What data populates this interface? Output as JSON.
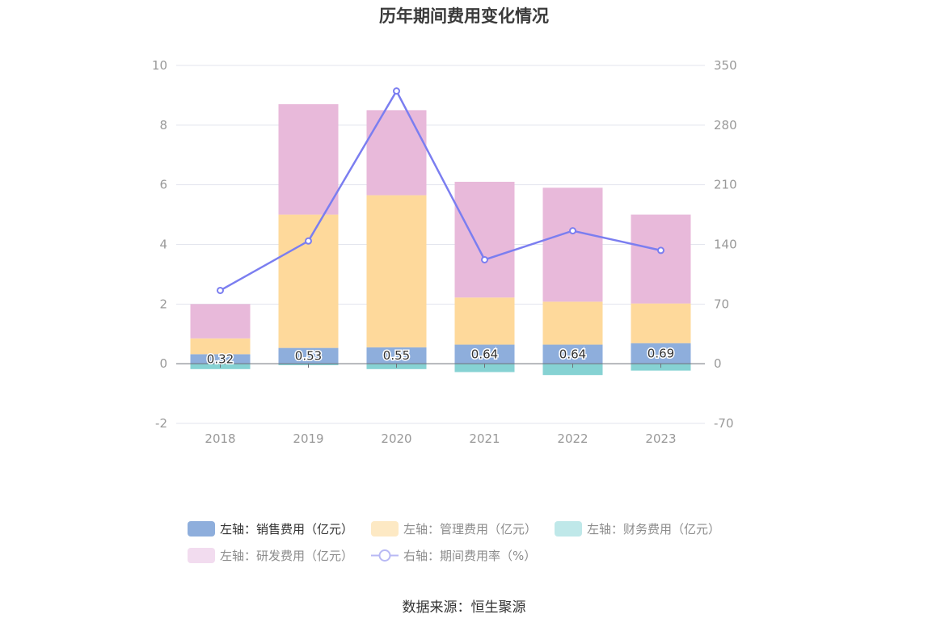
{
  "title": "历年期间费用变化情况",
  "source": "数据来源：恒生聚源",
  "colors": {
    "sales": "#8eaedc",
    "admin": "#fed99b",
    "finance": "#86d2d3",
    "rd": "#e8b9da",
    "rate": "#7b7ef0",
    "grid": "#e3e5ee",
    "axis_text": "#999999"
  },
  "legend": [
    {
      "label": "左轴：销售费用（亿元）",
      "color": "#8eaedc",
      "kind": "box",
      "active": true
    },
    {
      "label": "左轴：管理费用（亿元）",
      "color": "#fde9c4",
      "kind": "box",
      "active": false
    },
    {
      "label": "左轴：财务费用（亿元）",
      "color": "#bfe8e9",
      "kind": "box",
      "active": false
    },
    {
      "label": "左轴：研发费用（亿元）",
      "color": "#f2dcef",
      "kind": "box",
      "active": false
    },
    {
      "label": "右轴：期间费用率（%）",
      "color": "#b8b9f4",
      "kind": "line",
      "active": false
    }
  ],
  "chart_data": {
    "type": "bar",
    "stacked": true,
    "categories": [
      "2018",
      "2019",
      "2020",
      "2021",
      "2022",
      "2023"
    ],
    "y_left": {
      "ticks": [
        "10",
        "8",
        "6",
        "4",
        "2",
        "0",
        "-2"
      ],
      "min": -2,
      "max": 10
    },
    "y_right": {
      "ticks": [
        "350",
        "280",
        "210",
        "140",
        "70",
        "0",
        "-70"
      ],
      "min": -70,
      "max": 350
    },
    "series": [
      {
        "name": "销售费用",
        "axis": "left",
        "values": [
          0.32,
          0.53,
          0.55,
          0.64,
          0.64,
          0.69
        ],
        "data_labels": [
          "0.32",
          "0.53",
          "0.55",
          "0.64",
          "0.64",
          "0.69"
        ]
      },
      {
        "name": "管理费用",
        "axis": "left",
        "values": [
          0.53,
          4.47,
          5.1,
          1.58,
          1.44,
          1.33
        ]
      },
      {
        "name": "财务费用",
        "axis": "left",
        "values": [
          -0.18,
          -0.05,
          -0.18,
          -0.28,
          -0.38,
          -0.23
        ]
      },
      {
        "name": "研发费用",
        "axis": "left",
        "values": [
          1.15,
          3.7,
          2.85,
          3.88,
          3.82,
          2.98
        ]
      },
      {
        "name": "期间费用率",
        "axis": "right",
        "type": "line",
        "values": [
          86,
          144,
          320,
          122,
          156,
          133
        ]
      }
    ],
    "grid": true
  }
}
